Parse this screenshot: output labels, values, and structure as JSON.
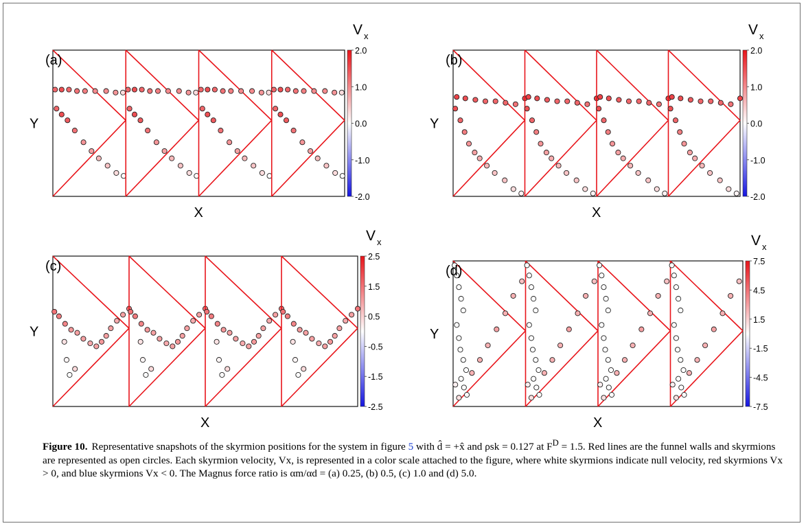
{
  "caption": {
    "label": "Figure 10.",
    "text_1": "Representative snapshots of the skyrmion positions for the system in figure ",
    "ref": "5",
    "text_2": " with d̂ = +x̂ and ρsk = 0.127 at F",
    "text_2_sup": "D",
    "text_3": " = 1.5. Red lines are the funnel walls and skyrmions are represented as open circles. Each skyrmion velocity, Vx, is represented in a color scale attached to the figure, where white skyrmions indicate null velocity, red skyrmions Vx > 0, and blue skyrmions Vx < 0. The Magnus force ratio is αm/αd = (a) 0.25, (b) 0.5, (c) 1.0 and (d) 5.0."
  },
  "colors": {
    "wall": "#e8141a",
    "positive": "#e8141a",
    "negative": "#1515e0",
    "neutral": "#ffffff"
  },
  "chart_data": [
    {
      "type": "scatter",
      "panel": "(a)",
      "xlabel": "X",
      "ylabel": "Y",
      "colorbar": {
        "title": "V",
        "title_sub": "x",
        "range": [
          -2.0,
          2.0
        ],
        "ticks": [
          "2.0",
          "1.0",
          "0.0",
          "-1.0",
          "-2.0"
        ]
      },
      "xlim": [
        0,
        4
      ],
      "ylim": [
        0,
        1
      ],
      "walls": "sawtooth",
      "cells": [
        {
          "x": [
            0.03,
            0.12,
            0.22,
            0.33,
            0.44,
            0.58,
            0.73,
            0.86,
            0.96,
            0.05,
            0.12,
            0.2,
            0.3,
            0.42,
            0.53,
            0.63,
            0.75,
            0.87,
            0.97
          ],
          "y": [
            0.73,
            0.73,
            0.73,
            0.72,
            0.72,
            0.72,
            0.72,
            0.71,
            0.71,
            0.6,
            0.56,
            0.52,
            0.45,
            0.37,
            0.31,
            0.26,
            0.21,
            0.16,
            0.14
          ],
          "v": [
            1.3,
            1.5,
            1.3,
            1.2,
            1.1,
            1.0,
            1.0,
            0.9,
            0.3,
            1.3,
            1.5,
            1.4,
            1.2,
            0.9,
            0.8,
            0.6,
            0.5,
            0.3,
            0.0
          ]
        }
      ]
    },
    {
      "type": "scatter",
      "panel": "(b)",
      "xlabel": "X",
      "ylabel": "Y",
      "colorbar": {
        "title": "V",
        "title_sub": "x",
        "range": [
          -2.0,
          2.0
        ],
        "ticks": [
          "2.0",
          "1.0",
          "0.0",
          "-1.0",
          "-2.0"
        ]
      },
      "xlim": [
        0,
        4
      ],
      "ylim": [
        0,
        1
      ],
      "walls": "sawtooth",
      "cells": [
        {
          "x": [
            0.05,
            0.17,
            0.31,
            0.45,
            0.59,
            0.73,
            0.87,
            1.0,
            0.03,
            0.1,
            0.16,
            0.22,
            0.3,
            0.37,
            0.47,
            0.58,
            0.72,
            0.84,
            0.95
          ],
          "y": [
            0.68,
            0.67,
            0.66,
            0.65,
            0.65,
            0.64,
            0.63,
            0.67,
            0.6,
            0.52,
            0.44,
            0.36,
            0.3,
            0.26,
            0.21,
            0.16,
            0.11,
            0.05,
            0.02
          ],
          "v": [
            1.6,
            1.5,
            1.4,
            1.3,
            1.3,
            1.3,
            1.2,
            1.6,
            1.5,
            1.3,
            1.1,
            0.9,
            0.8,
            0.7,
            0.6,
            0.5,
            0.5,
            0.3,
            0.1
          ]
        }
      ]
    },
    {
      "type": "scatter",
      "panel": "(c)",
      "xlabel": "X",
      "ylabel": "Y",
      "colorbar": {
        "title": "V",
        "title_sub": "x",
        "range": [
          -2.5,
          2.5
        ],
        "ticks": [
          "2.5",
          "1.5",
          "0.5",
          "-0.5",
          "-1.5",
          "-2.5"
        ]
      },
      "xlim": [
        0,
        4
      ],
      "ylim": [
        0,
        1
      ],
      "walls": "sawtooth",
      "cells": [
        {
          "x": [
            0.02,
            0.08,
            0.16,
            0.24,
            0.32,
            0.4,
            0.49,
            0.57,
            0.64,
            0.7,
            0.76,
            0.84,
            0.92,
            1.0,
            0.15,
            0.18,
            0.22,
            0.29
          ],
          "y": [
            0.63,
            0.6,
            0.55,
            0.51,
            0.49,
            0.45,
            0.42,
            0.4,
            0.43,
            0.47,
            0.52,
            0.57,
            0.61,
            0.65,
            0.43,
            0.31,
            0.21,
            0.25
          ],
          "v": [
            1.5,
            1.4,
            1.3,
            1.1,
            1.0,
            1.0,
            0.9,
            1.0,
            1.1,
            1.0,
            1.0,
            0.9,
            1.0,
            1.5,
            0.3,
            0.1,
            0.0,
            0.4
          ]
        }
      ]
    },
    {
      "type": "scatter",
      "panel": "(d)",
      "xlabel": "X",
      "ylabel": "Y",
      "colorbar": {
        "title": "V",
        "title_sub": "x",
        "range": [
          -7.5,
          7.5
        ],
        "ticks": [
          "7.5",
          "4.5",
          "1.5",
          "-1.5",
          "-4.5",
          "-7.5"
        ]
      },
      "xlim": [
        0,
        4
      ],
      "ylim": [
        0,
        1
      ],
      "walls": "sawtooth-lower",
      "cells": [
        {
          "x": [
            0.02,
            0.05,
            0.08,
            0.11,
            0.14,
            0.05,
            0.08,
            0.1,
            0.14,
            0.18,
            0.11,
            0.15,
            0.19,
            0.26,
            0.37,
            0.48,
            0.6,
            0.72,
            0.83,
            0.95,
            0.03,
            0.08
          ],
          "y": [
            0.97,
            0.9,
            0.82,
            0.74,
            0.66,
            0.56,
            0.47,
            0.39,
            0.32,
            0.25,
            0.19,
            0.13,
            0.08,
            0.23,
            0.32,
            0.42,
            0.53,
            0.64,
            0.76,
            0.86,
            0.15,
            0.06
          ],
          "v": [
            0.0,
            0.0,
            0.0,
            0.0,
            0.0,
            0.0,
            0.0,
            0.0,
            0.0,
            0.0,
            0.0,
            0.0,
            0.0,
            2.5,
            2.5,
            2.5,
            3.0,
            2.5,
            2.5,
            2.0,
            0.5,
            1.0
          ]
        }
      ]
    }
  ]
}
